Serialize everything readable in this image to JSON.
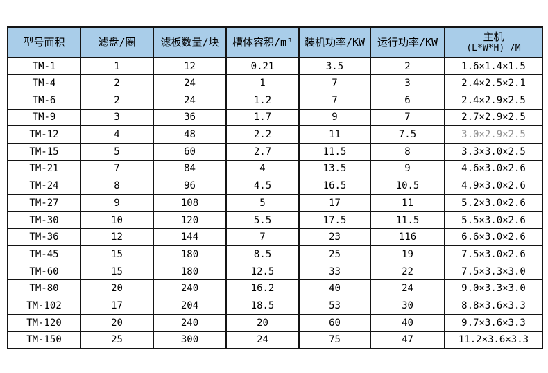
{
  "colors": {
    "header_bg": "#a9cde9",
    "border": "#141414",
    "text": "#000000",
    "muted_text": "#909090",
    "background": "#ffffff"
  },
  "table": {
    "columns": [
      {
        "label": "型号面积"
      },
      {
        "label": "滤盘/圈"
      },
      {
        "label": "滤板数量/块"
      },
      {
        "label": "槽体容积/m³"
      },
      {
        "label": "装机功率/KW"
      },
      {
        "label": "运行功率/KW"
      },
      {
        "label": "主机",
        "label_line2": "(L*W*H) /M"
      }
    ],
    "rows": [
      [
        "TM-1",
        "1",
        "12",
        "0.21",
        "3.5",
        "2",
        "1.6×1.4×1.5"
      ],
      [
        "TM-4",
        "2",
        "24",
        "1",
        "7",
        "3",
        "2.4×2.5×2.1"
      ],
      [
        "TM-6",
        "2",
        "24",
        "1.2",
        "7",
        "6",
        "2.4×2.9×2.5"
      ],
      [
        "TM-9",
        "3",
        "36",
        "1.7",
        "9",
        "7",
        "2.7×2.9×2.5"
      ],
      [
        "TM-12",
        "4",
        "48",
        "2.2",
        "11",
        "7.5",
        "3.0×2.9×2.5"
      ],
      [
        "TM-15",
        "5",
        "60",
        "2.7",
        "11.5",
        "8",
        "3.3×3.0×2.5"
      ],
      [
        "TM-21",
        "7",
        "84",
        "4",
        "13.5",
        "9",
        "4.6×3.0×2.6"
      ],
      [
        "TM-24",
        "8",
        "96",
        "4.5",
        "16.5",
        "10.5",
        "4.9×3.0×2.6"
      ],
      [
        "TM-27",
        "9",
        "108",
        "5",
        "17",
        "11",
        "5.2×3.0×2.6"
      ],
      [
        "TM-30",
        "10",
        "120",
        "5.5",
        "17.5",
        "11.5",
        "5.5×3.0×2.6"
      ],
      [
        "TM-36",
        "12",
        "144",
        "7",
        "23",
        "116",
        "6.6×3.0×2.6"
      ],
      [
        "TM-45",
        "15",
        "180",
        "8.5",
        "25",
        "19",
        "7.5×3.0×2.6"
      ],
      [
        "TM-60",
        "15",
        "180",
        "12.5",
        "33",
        "22",
        "7.5×3.3×3.0"
      ],
      [
        "TM-80",
        "20",
        "240",
        "16.2",
        "40",
        "24",
        "9.0×3.3×3.0"
      ],
      [
        "TM-102",
        "17",
        "204",
        "18.5",
        "53",
        "30",
        "8.8×3.6×3.3"
      ],
      [
        "TM-120",
        "20",
        "240",
        "20",
        "60",
        "40",
        "9.7×3.6×3.3"
      ],
      [
        "TM-150",
        "25",
        "300",
        "24",
        "75",
        "47",
        "11.2×3.6×3.3"
      ]
    ],
    "muted_cell": {
      "row_index": 4,
      "col_index": 6
    }
  }
}
